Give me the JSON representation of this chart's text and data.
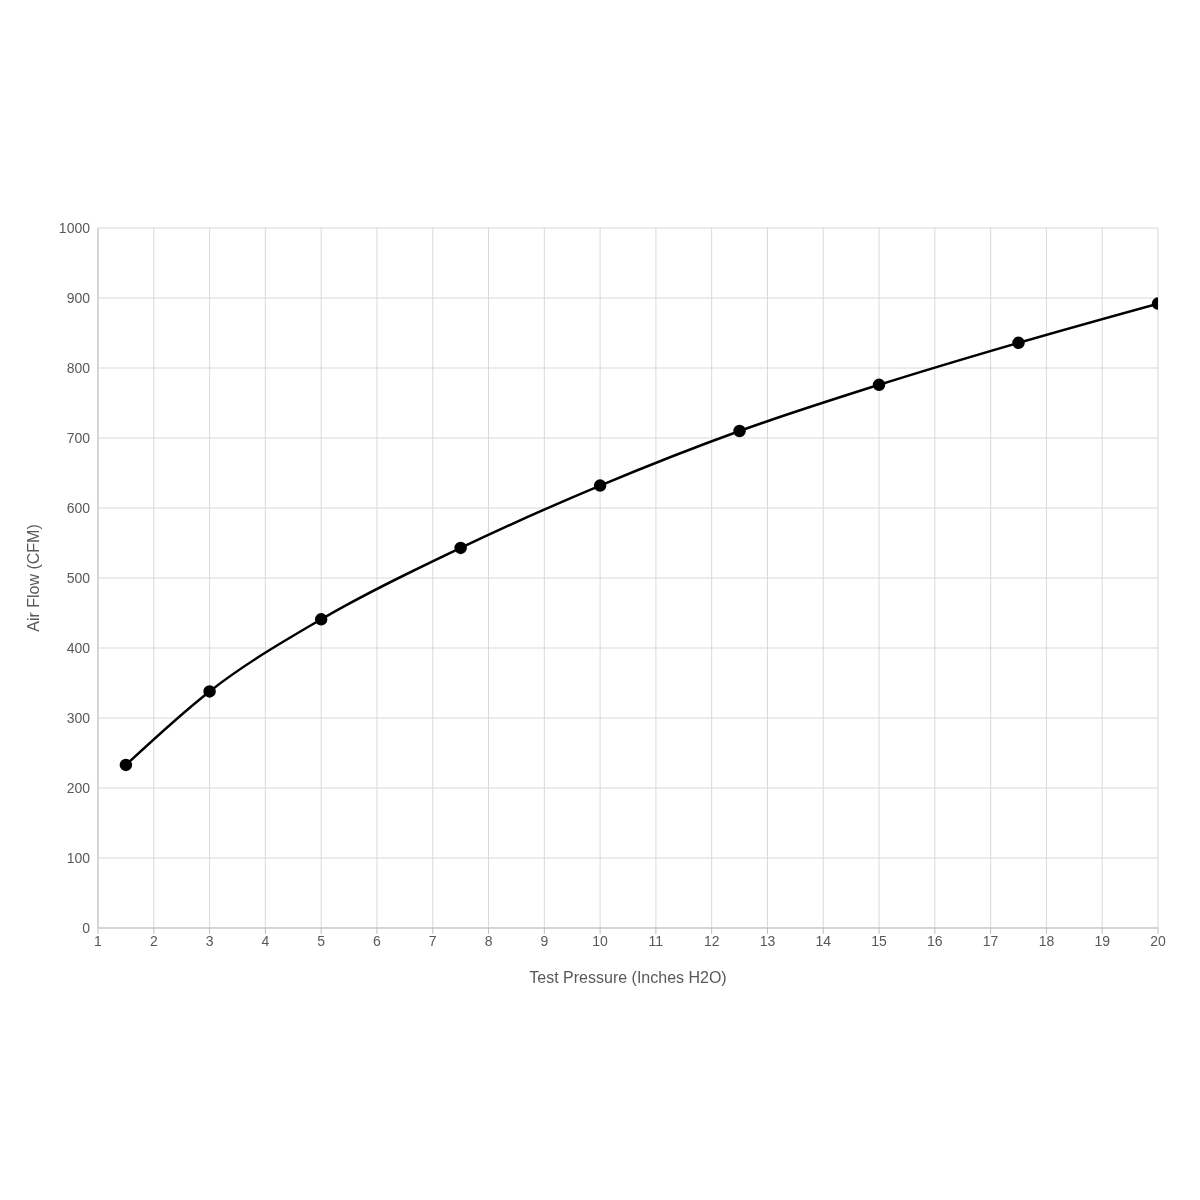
{
  "chart_data": {
    "type": "line",
    "xlabel": "Test Pressure (Inches H2O)",
    "ylabel": "Air Flow (CFM)",
    "x": [
      1.5,
      3,
      5,
      7.5,
      10,
      12.5,
      15,
      17.5,
      20
    ],
    "series": [
      {
        "color": "#000000",
        "values": [
          233,
          338,
          441,
          543,
          632,
          710,
          776,
          836,
          892
        ]
      }
    ],
    "xlim": [
      1,
      20
    ],
    "xticks": [
      1,
      2,
      3,
      4,
      5,
      6,
      7,
      8,
      9,
      10,
      11,
      12,
      13,
      14,
      15,
      16,
      17,
      18,
      19,
      20
    ],
    "ylim": [
      0,
      1000
    ],
    "yticks": [
      0,
      100,
      200,
      300,
      400,
      500,
      600,
      700,
      800,
      900,
      1000
    ],
    "grid": true,
    "marker": "circle",
    "line_style": "solid",
    "legend": false
  }
}
